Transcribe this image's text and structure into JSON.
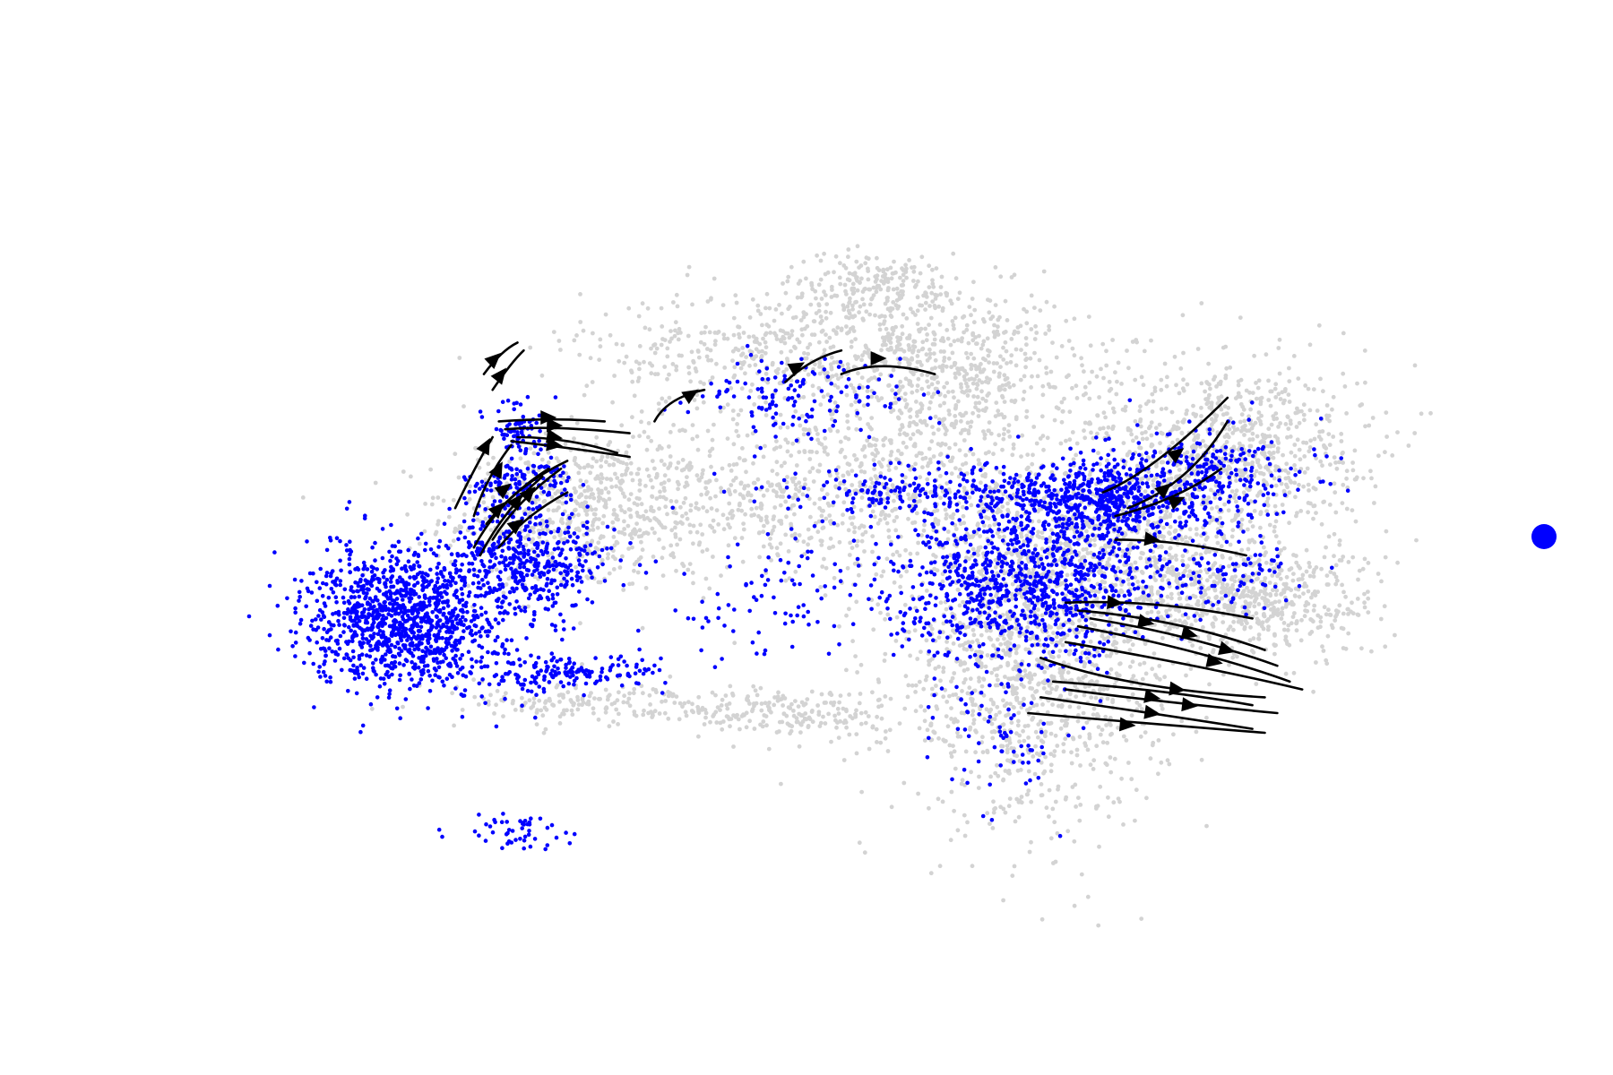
{
  "chart_data": {
    "type": "scatter",
    "title": "",
    "xlabel": "",
    "ylabel": "",
    "axes_visible": false,
    "grid": false,
    "xlim": [
      0,
      100
    ],
    "ylim": [
      0,
      100
    ],
    "legend": {
      "placement": "right",
      "entries": [
        {
          "name": "",
          "color": "#0000ff"
        }
      ]
    },
    "colors": {
      "background_cells": "#d3d3d3",
      "highlighted_cells": "#0000ff",
      "streamlines": "#000000"
    },
    "point_clouds": [
      {
        "group": "background",
        "cx": 30,
        "cy": 55,
        "rx": 10,
        "ry": 9,
        "n": 520
      },
      {
        "group": "background",
        "cx": 48,
        "cy": 58,
        "rx": 20,
        "ry": 9,
        "n": 800
      },
      {
        "group": "background",
        "cx": 50,
        "cy": 76,
        "rx": 18,
        "ry": 7,
        "n": 650
      },
      {
        "group": "background",
        "cx": 54,
        "cy": 84,
        "rx": 7,
        "ry": 4,
        "n": 220
      },
      {
        "group": "background",
        "cx": 60,
        "cy": 70,
        "rx": 10,
        "ry": 10,
        "n": 420
      },
      {
        "group": "background",
        "cx": 66,
        "cy": 34,
        "rx": 10,
        "ry": 16,
        "n": 1100
      },
      {
        "group": "background",
        "cx": 72,
        "cy": 50,
        "rx": 14,
        "ry": 10,
        "n": 900
      },
      {
        "group": "background",
        "cx": 82,
        "cy": 64,
        "rx": 10,
        "ry": 10,
        "n": 800
      },
      {
        "group": "background",
        "cx": 84,
        "cy": 44,
        "rx": 9,
        "ry": 6,
        "n": 500
      },
      {
        "group": "background",
        "cx": 48,
        "cy": 30,
        "rx": 7,
        "ry": 3,
        "n": 160
      },
      {
        "group": "background",
        "cx": 33,
        "cy": 31,
        "rx": 12,
        "ry": 2.5,
        "n": 200
      },
      {
        "group": "highlighted",
        "cx": 16,
        "cy": 42,
        "rx": 7,
        "ry": 8,
        "n": 1200
      },
      {
        "group": "highlighted",
        "cx": 26,
        "cy": 49,
        "rx": 6,
        "ry": 6,
        "n": 420
      },
      {
        "group": "highlighted",
        "cx": 25,
        "cy": 59,
        "rx": 4,
        "ry": 3,
        "n": 130
      },
      {
        "group": "highlighted",
        "cx": 25,
        "cy": 66,
        "rx": 2,
        "ry": 3,
        "n": 70
      },
      {
        "group": "highlighted",
        "cx": 29,
        "cy": 35,
        "rx": 7,
        "ry": 2,
        "n": 160
      },
      {
        "group": "highlighted",
        "cx": 66,
        "cy": 46,
        "rx": 10,
        "ry": 8,
        "n": 900
      },
      {
        "group": "highlighted",
        "cx": 72,
        "cy": 57,
        "rx": 8,
        "ry": 5,
        "n": 600
      },
      {
        "group": "highlighted",
        "cx": 58,
        "cy": 58,
        "rx": 10,
        "ry": 3,
        "n": 200
      },
      {
        "group": "highlighted",
        "cx": 80,
        "cy": 60,
        "rx": 8,
        "ry": 6,
        "n": 250
      },
      {
        "group": "highlighted",
        "cx": 48,
        "cy": 70,
        "rx": 8,
        "ry": 5,
        "n": 140
      },
      {
        "group": "highlighted",
        "cx": 46,
        "cy": 45,
        "rx": 8,
        "ry": 7,
        "n": 80
      },
      {
        "group": "highlighted",
        "cx": 64,
        "cy": 28,
        "rx": 5,
        "ry": 10,
        "n": 90
      },
      {
        "group": "highlighted",
        "cx": 82,
        "cy": 48,
        "rx": 6,
        "ry": 5,
        "n": 80
      },
      {
        "group": "highlighted",
        "cx": 24,
        "cy": 15,
        "rx": 4,
        "ry": 2,
        "n": 50
      }
    ],
    "streamlines": [
      {
        "points": [
          [
            20,
            56
          ],
          [
            21.5,
            61
          ],
          [
            23,
            65
          ]
        ],
        "arrow_at": [
          22.5,
          64
        ]
      },
      {
        "points": [
          [
            21.5,
            55
          ],
          [
            22.5,
            60
          ],
          [
            24.5,
            64
          ]
        ],
        "arrow_at": [
          23.5,
          61
        ]
      },
      {
        "points": [
          [
            22,
            50
          ],
          [
            24,
            56
          ],
          [
            27,
            60
          ]
        ],
        "arrow_at": [
          25,
          57
        ]
      },
      {
        "points": [
          [
            23,
            52
          ],
          [
            25,
            57
          ],
          [
            28.5,
            61
          ]
        ],
        "arrow_at": [
          26,
          58
        ]
      },
      {
        "points": [
          [
            21.5,
            51
          ],
          [
            23.5,
            57
          ],
          [
            27.5,
            61
          ]
        ],
        "arrow_at": [
          23.5,
          56
        ]
      },
      {
        "points": [
          [
            23.5,
            51
          ],
          [
            25.5,
            55
          ],
          [
            29,
            58
          ]
        ],
        "arrow_at": [
          25,
          54
        ]
      },
      {
        "points": [
          [
            22.5,
            54
          ],
          [
            25,
            59
          ],
          [
            29,
            62
          ]
        ],
        "arrow_at": [
          24,
          58.5
        ]
      },
      {
        "points": [
          [
            23,
            71
          ],
          [
            24.5,
            74.5
          ],
          [
            25.5,
            76
          ]
        ],
        "arrow_at": [
          23.7,
          73
        ]
      },
      {
        "points": [
          [
            22.3,
            73
          ],
          [
            23.7,
            76
          ],
          [
            25,
            77
          ]
        ],
        "arrow_at": [
          23.2,
          75
        ]
      },
      {
        "points": [
          [
            23.5,
            67
          ],
          [
            28,
            67.5
          ],
          [
            32,
            67
          ]
        ],
        "arrow_at": [
          27.5,
          67.5
        ]
      },
      {
        "points": [
          [
            24,
            66
          ],
          [
            28,
            66.5
          ],
          [
            34,
            65.5
          ]
        ],
        "arrow_at": [
          28,
          66.5
        ]
      },
      {
        "points": [
          [
            25,
            65
          ],
          [
            29,
            65
          ],
          [
            33,
            63
          ]
        ],
        "arrow_at": [
          28,
          65
        ]
      },
      {
        "points": [
          [
            24.5,
            64.5
          ],
          [
            30,
            63.5
          ],
          [
            34,
            62.5
          ]
        ],
        "arrow_at": [
          28,
          64
        ]
      },
      {
        "points": [
          [
            36,
            67
          ],
          [
            37,
            70
          ],
          [
            40,
            71
          ]
        ],
        "arrow_at": [
          39,
          70.5
        ]
      },
      {
        "points": [
          [
            46.5,
            72
          ],
          [
            48.5,
            75
          ],
          [
            51,
            76
          ]
        ],
        "arrow_at": [
          47.5,
          74
        ]
      },
      {
        "points": [
          [
            51,
            73
          ],
          [
            54,
            75
          ],
          [
            58.5,
            73
          ]
        ],
        "arrow_at": [
          54,
          75
        ]
      },
      {
        "points": [
          [
            72,
            58
          ],
          [
            76,
            60.5
          ],
          [
            82,
            70
          ]
        ],
        "arrow_at": [
          78,
          63
        ]
      },
      {
        "points": [
          [
            74,
            56
          ],
          [
            79,
            59
          ],
          [
            82,
            67
          ]
        ],
        "arrow_at": [
          77,
          58.5
        ]
      },
      {
        "points": [
          [
            73,
            55
          ],
          [
            78,
            57
          ],
          [
            81.5,
            61
          ]
        ],
        "arrow_at": [
          78,
          57
        ]
      },
      {
        "points": [
          [
            73,
            52
          ],
          [
            78,
            52
          ],
          [
            83.5,
            50
          ]
        ],
        "arrow_at": [
          76,
          52
        ]
      },
      {
        "points": [
          [
            69,
            44
          ],
          [
            76,
            44.5
          ],
          [
            84,
            42
          ]
        ],
        "arrow_at": [
          73,
          44
        ]
      },
      {
        "points": [
          [
            70,
            43
          ],
          [
            78,
            42
          ],
          [
            85,
            38
          ]
        ],
        "arrow_at": [
          75.5,
          41.5
        ]
      },
      {
        "points": [
          [
            71,
            42
          ],
          [
            79,
            40
          ],
          [
            86,
            36
          ]
        ],
        "arrow_at": [
          79,
          40
        ]
      },
      {
        "points": [
          [
            70,
            41
          ],
          [
            80,
            38
          ],
          [
            87,
            34
          ]
        ],
        "arrow_at": [
          82,
          38
        ]
      },
      {
        "points": [
          [
            69,
            39
          ],
          [
            80,
            36
          ],
          [
            88,
            33
          ]
        ],
        "arrow_at": [
          81,
          36.5
        ]
      },
      {
        "points": [
          [
            67,
            37
          ],
          [
            74,
            33
          ],
          [
            85,
            32
          ]
        ],
        "arrow_at": [
          76,
          32
        ]
      },
      {
        "points": [
          [
            69,
            33
          ],
          [
            76,
            31.5
          ],
          [
            86,
            30
          ]
        ],
        "arrow_at": [
          79,
          31
        ]
      },
      {
        "points": [
          [
            67,
            32
          ],
          [
            76,
            30
          ],
          [
            84,
            28
          ]
        ],
        "arrow_at": [
          76,
          30
        ]
      },
      {
        "points": [
          [
            68,
            34
          ],
          [
            77,
            33
          ],
          [
            84,
            31
          ]
        ],
        "arrow_at": [
          78,
          33
        ]
      },
      {
        "points": [
          [
            66,
            30
          ],
          [
            73,
            29
          ],
          [
            85,
            27.5
          ]
        ],
        "arrow_at": [
          74,
          28.5
        ]
      }
    ]
  }
}
